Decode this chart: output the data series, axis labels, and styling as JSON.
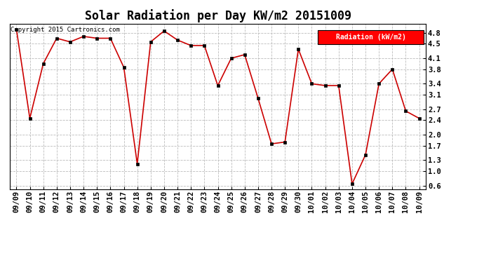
{
  "title": "Solar Radiation per Day KW/m2 20151009",
  "ylabel": "Radiation (kW/m2)",
  "copyright": "Copyright 2015 Cartronics.com",
  "dates": [
    "09/09",
    "09/10",
    "09/11",
    "09/12",
    "09/13",
    "09/14",
    "09/15",
    "09/16",
    "09/17",
    "09/18",
    "09/19",
    "09/20",
    "09/21",
    "09/22",
    "09/23",
    "09/24",
    "09/25",
    "09/26",
    "09/27",
    "09/28",
    "09/29",
    "09/30",
    "10/01",
    "10/02",
    "10/03",
    "10/04",
    "10/05",
    "10/06",
    "10/07",
    "10/08",
    "10/09"
  ],
  "values": [
    4.9,
    2.45,
    3.95,
    4.65,
    4.55,
    4.7,
    4.65,
    4.65,
    3.85,
    1.2,
    4.55,
    4.85,
    4.6,
    4.45,
    4.45,
    3.35,
    4.1,
    4.2,
    3.0,
    1.75,
    1.8,
    4.35,
    3.4,
    3.35,
    3.35,
    0.65,
    1.45,
    3.4,
    3.8,
    2.65,
    2.45
  ],
  "line_color": "#cc0000",
  "marker_color": "black",
  "bg_color": "white",
  "grid_color": "#bbbbbb",
  "ylim": [
    0.5,
    5.05
  ],
  "yticks": [
    0.6,
    1.0,
    1.3,
    1.7,
    2.0,
    2.4,
    2.7,
    3.1,
    3.4,
    3.8,
    4.1,
    4.5,
    4.8
  ],
  "legend_bg": "red",
  "legend_text_color": "white",
  "title_fontsize": 12,
  "copyright_fontsize": 6.5,
  "tick_fontsize": 7.5,
  "legend_fontsize": 7
}
